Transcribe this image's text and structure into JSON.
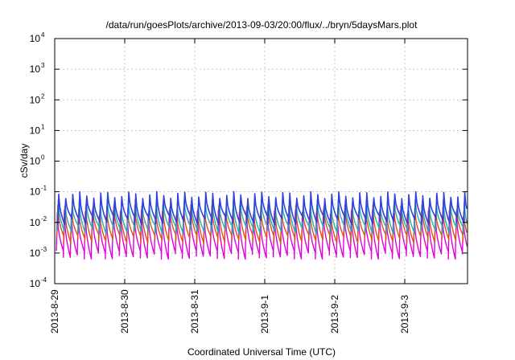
{
  "chart_data": {
    "type": "line",
    "title": "/data/run/goesPlots/archive/2013-09-03/20:00/flux/../bryn/5daysMars.plot",
    "xlabel": "Coordinated Universal Time (UTC)",
    "ylabel": "cSv/day",
    "yscale": "log",
    "ylim": [
      0.0001,
      10000
    ],
    "xlim": [
      "2013-08-29",
      "2013-09-03T20:00"
    ],
    "y_ticks": [
      {
        "base": "10",
        "exp": "-4"
      },
      {
        "base": "10",
        "exp": "-3"
      },
      {
        "base": "10",
        "exp": "-2"
      },
      {
        "base": "10",
        "exp": "-1"
      },
      {
        "base": "10",
        "exp": "0"
      },
      {
        "base": "10",
        "exp": "1"
      },
      {
        "base": "10",
        "exp": "2"
      },
      {
        "base": "10",
        "exp": "3"
      },
      {
        "base": "10",
        "exp": "4"
      }
    ],
    "x_ticks": [
      "2013-8-29",
      "2013-8-30",
      "2013-8-31",
      "2013-9-1",
      "2013-9-2",
      "2013-9-3"
    ],
    "grid": true,
    "legend": "none",
    "pattern": "sawtooth, approx. 10 cycles per day; each cycle jumps to a peak then decays",
    "series": [
      {
        "color": "#3040e0",
        "peak": 0.08,
        "trough": 0.012
      },
      {
        "color": "#20b0b0",
        "peak": 0.045,
        "trough": 0.006
      },
      {
        "color": "#e05010",
        "peak": 0.03,
        "trough": 0.003
      },
      {
        "color": "#e000e0",
        "peak": 0.02,
        "trough": 0.0009
      }
    ]
  }
}
